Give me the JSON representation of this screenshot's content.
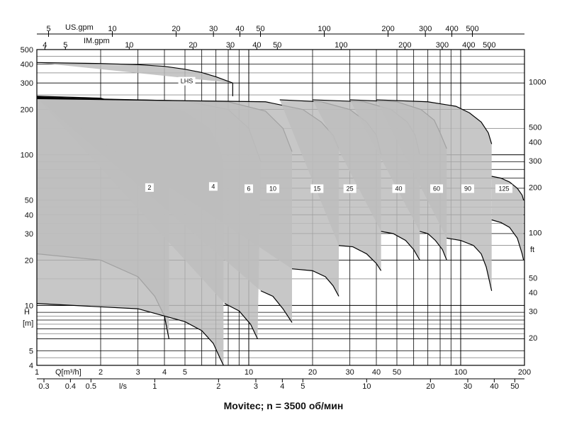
{
  "chart_data": {
    "type": "area",
    "caption": "Movitec; n = 3500 об/мин",
    "x_axis": {
      "label": "Q[m³/h]",
      "scale": "log",
      "range": [
        1,
        200
      ],
      "ticks": [
        "1",
        "2",
        "3",
        "4",
        "5",
        "10",
        "20",
        "30",
        "40",
        "50",
        "100",
        "200"
      ]
    },
    "x2_axis": {
      "label": "l/s",
      "ticks": [
        "0.3",
        "0.4",
        "0.5",
        "1",
        "2",
        "3",
        "4",
        "5",
        "10",
        "20",
        "30",
        "40",
        "50"
      ]
    },
    "x_top_us": {
      "label": "US.gpm",
      "ticks": [
        "5",
        "10",
        "20",
        "30",
        "40",
        "50",
        "100",
        "200",
        "300",
        "400",
        "500"
      ]
    },
    "x_top_im": {
      "label": "IM.gpm",
      "ticks": [
        "4",
        "5",
        "10",
        "20",
        "30",
        "40",
        "50",
        "100",
        "200",
        "300",
        "400",
        "500"
      ]
    },
    "y_axis": {
      "label": "H",
      "unit": "[m]",
      "scale": "log",
      "range": [
        4,
        500
      ],
      "ticks": [
        "4",
        "5",
        "10",
        "20",
        "30",
        "40",
        "50",
        "100",
        "200",
        "300",
        "400",
        "500"
      ]
    },
    "y2_axis": {
      "label": "ft",
      "ticks": [
        "20",
        "30",
        "40",
        "50",
        "100",
        "200",
        "300",
        "400",
        "500",
        "1000"
      ]
    },
    "series": [
      {
        "name": "LHS",
        "label_at": [
          5.1,
          305
        ],
        "top": [
          [
            1,
            410
          ],
          [
            2,
            404
          ],
          [
            3,
            397
          ],
          [
            4,
            387
          ],
          [
            5,
            370
          ],
          [
            6,
            352
          ],
          [
            7,
            330
          ],
          [
            8.4,
            300
          ]
        ],
        "bottom": [
          [
            8.4,
            300
          ],
          [
            8.4,
            245
          ]
        ]
      },
      {
        "name": "2",
        "label_at": [
          3.4,
          60
        ],
        "top": [
          [
            1,
            245
          ],
          [
            2,
            238
          ],
          [
            3,
            200
          ],
          [
            3.6,
            150
          ],
          [
            4,
            110
          ],
          [
            4.2,
            85
          ]
        ],
        "bottom": [
          [
            1,
            22
          ],
          [
            2,
            20
          ],
          [
            3,
            15.5
          ],
          [
            3.6,
            11.5
          ],
          [
            4,
            8.5
          ],
          [
            4.2,
            6
          ]
        ]
      },
      {
        "name": "4",
        "label_at": [
          6.8,
          61
        ],
        "top": [
          [
            1,
            242
          ],
          [
            3,
            230
          ],
          [
            5,
            192
          ],
          [
            6.5,
            150
          ],
          [
            7.3,
            110
          ],
          [
            7.6,
            80
          ]
        ],
        "bottom": [
          [
            1,
            10.3
          ],
          [
            3,
            9.5
          ],
          [
            5,
            7.8
          ],
          [
            6,
            6.8
          ],
          [
            6.8,
            5.6
          ],
          [
            7.3,
            4.5
          ],
          [
            7.6,
            4
          ]
        ]
      },
      {
        "name": "6",
        "label_at": [
          10,
          59
        ],
        "top": [
          [
            1,
            240
          ],
          [
            5,
            228
          ],
          [
            8,
            200
          ],
          [
            10,
            150
          ],
          [
            11.4,
            90
          ]
        ],
        "bottom": [
          [
            7.7,
            10.3
          ],
          [
            9,
            9.2
          ],
          [
            10.2,
            7.5
          ],
          [
            11,
            6
          ]
        ]
      },
      {
        "name": "10",
        "label_at": [
          13,
          59
        ],
        "top": [
          [
            1,
            238
          ],
          [
            8,
            225
          ],
          [
            12,
            195
          ],
          [
            14.5,
            150
          ],
          [
            16,
            105
          ]
        ],
        "bottom": [
          [
            11.4,
            12.5
          ],
          [
            13,
            11.5
          ],
          [
            14.5,
            9.5
          ],
          [
            16,
            7.7
          ]
        ]
      },
      {
        "name": "15",
        "label_at": [
          21,
          59
        ],
        "top": [
          [
            1,
            236
          ],
          [
            12,
            225
          ],
          [
            18,
            200
          ],
          [
            22,
            165
          ],
          [
            25,
            135
          ],
          [
            26.6,
            110
          ]
        ],
        "bottom": [
          [
            16,
            17.5
          ],
          [
            20,
            17
          ],
          [
            23,
            15.5
          ],
          [
            25,
            13.5
          ],
          [
            26.6,
            11.5
          ]
        ]
      },
      {
        "name": "25",
        "label_at": [
          30,
          59
        ],
        "top": [
          [
            14,
            232
          ],
          [
            22,
            225
          ],
          [
            30,
            200
          ],
          [
            36,
            165
          ],
          [
            40,
            135
          ],
          [
            42.1,
            100
          ]
        ],
        "bottom": [
          [
            26.6,
            25
          ],
          [
            31,
            24.5
          ],
          [
            36,
            22
          ],
          [
            40,
            19
          ],
          [
            42.1,
            17
          ]
        ]
      },
      {
        "name": "40",
        "label_at": [
          51,
          59
        ],
        "top": [
          [
            20,
            232
          ],
          [
            35,
            225
          ],
          [
            47,
            200
          ],
          [
            56,
            165
          ],
          [
            61,
            135
          ],
          [
            64.1,
            100
          ]
        ],
        "bottom": [
          [
            42.1,
            31
          ],
          [
            48,
            30
          ],
          [
            55,
            27
          ],
          [
            60,
            23.5
          ],
          [
            64.1,
            20
          ]
        ]
      },
      {
        "name": "60",
        "label_at": [
          77,
          59
        ],
        "top": [
          [
            30,
            232
          ],
          [
            50,
            225
          ],
          [
            65,
            200
          ],
          [
            75,
            170
          ],
          [
            80,
            140
          ],
          [
            85.9,
            110
          ]
        ],
        "bottom": [
          [
            64.1,
            31
          ],
          [
            70,
            30
          ],
          [
            76,
            27
          ],
          [
            82,
            23.5
          ],
          [
            85.9,
            20
          ]
        ]
      },
      {
        "name": "90",
        "label_at": [
          108,
          59
        ],
        "top": [
          [
            40,
            232
          ],
          [
            70,
            225
          ],
          [
            95,
            210
          ],
          [
            110,
            190
          ],
          [
            125,
            165
          ],
          [
            135,
            140
          ],
          [
            140,
            118
          ]
        ],
        "bottom": [
          [
            85.9,
            28
          ],
          [
            100,
            27
          ],
          [
            115,
            25
          ],
          [
            125,
            22
          ],
          [
            132,
            18
          ],
          [
            140,
            12.5
          ]
        ]
      },
      {
        "name": "125",
        "label_at": [
          160,
          59
        ],
        "top": [
          [
            140,
            72
          ],
          [
            155,
            70
          ],
          [
            170,
            66
          ],
          [
            185,
            60
          ],
          [
            195,
            54
          ],
          [
            198,
            50
          ]
        ],
        "bottom": [
          [
            140,
            37
          ],
          [
            155,
            35.5
          ],
          [
            170,
            33
          ],
          [
            185,
            28
          ],
          [
            195,
            22
          ],
          [
            198,
            20
          ]
        ]
      }
    ]
  }
}
